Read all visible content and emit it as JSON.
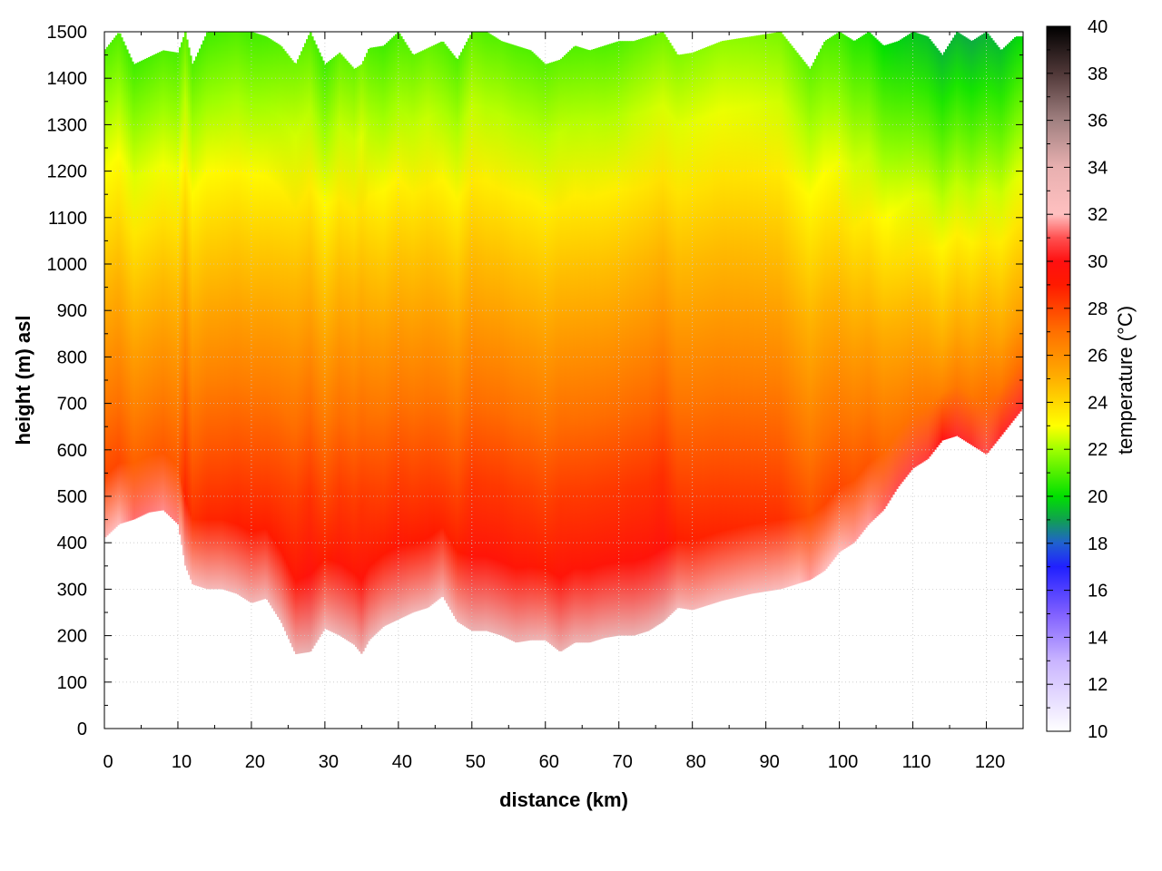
{
  "chart_data": {
    "type": "heatmap",
    "xlabel": "distance (km)",
    "ylabel": "height (m) asl",
    "colorbar_label": "temperature (°C)",
    "xlim": [
      0,
      125
    ],
    "ylim": [
      0,
      1500
    ],
    "clim": [
      10,
      40
    ],
    "x_ticks": [
      0,
      10,
      20,
      30,
      40,
      50,
      60,
      70,
      80,
      90,
      100,
      110,
      120
    ],
    "y_ticks": [
      0,
      100,
      200,
      300,
      400,
      500,
      600,
      700,
      800,
      900,
      1000,
      1100,
      1200,
      1300,
      1400,
      1500
    ],
    "c_ticks": [
      10,
      12,
      14,
      16,
      18,
      20,
      22,
      24,
      26,
      28,
      30,
      32,
      34,
      36,
      38,
      40
    ],
    "grid": true,
    "colormap": [
      {
        "t": 10,
        "color": "#ffffff"
      },
      {
        "t": 13,
        "color": "#c9b4ff"
      },
      {
        "t": 15,
        "color": "#8060ff"
      },
      {
        "t": 17,
        "color": "#2020ff"
      },
      {
        "t": 18,
        "color": "#2060d0"
      },
      {
        "t": 19,
        "color": "#10a050"
      },
      {
        "t": 20,
        "color": "#00e000"
      },
      {
        "t": 22,
        "color": "#a0ff00"
      },
      {
        "t": 23,
        "color": "#ffff00"
      },
      {
        "t": 25,
        "color": "#ffb000"
      },
      {
        "t": 27,
        "color": "#ff7000"
      },
      {
        "t": 29,
        "color": "#ff1a00"
      },
      {
        "t": 30,
        "color": "#ff1010"
      },
      {
        "t": 31,
        "color": "#ff5050"
      },
      {
        "t": 32,
        "color": "#ffc0c0"
      },
      {
        "t": 34,
        "color": "#e8b0b0"
      },
      {
        "t": 36,
        "color": "#a08080"
      },
      {
        "t": 38,
        "color": "#503838"
      },
      {
        "t": 40,
        "color": "#000000"
      }
    ],
    "profile_distance_km": [
      0,
      2,
      4,
      6,
      8,
      10,
      11,
      12,
      14,
      16,
      18,
      20,
      22,
      24,
      26,
      28,
      30,
      32,
      34,
      35,
      36,
      38,
      40,
      42,
      44,
      46,
      48,
      50,
      52,
      54,
      56,
      58,
      60,
      62,
      64,
      66,
      68,
      70,
      72,
      74,
      76,
      78,
      80,
      84,
      88,
      92,
      96,
      98,
      100,
      102,
      104,
      106,
      108,
      110,
      112,
      114,
      116,
      118,
      120,
      122,
      124,
      125
    ],
    "ground_height_m": [
      410,
      440,
      450,
      465,
      470,
      440,
      350,
      310,
      300,
      300,
      290,
      270,
      280,
      230,
      160,
      165,
      215,
      200,
      180,
      160,
      190,
      220,
      235,
      250,
      260,
      285,
      230,
      210,
      210,
      200,
      185,
      190,
      190,
      165,
      185,
      185,
      195,
      200,
      200,
      210,
      230,
      260,
      255,
      275,
      290,
      300,
      320,
      340,
      380,
      400,
      440,
      470,
      520,
      560,
      580,
      620,
      630,
      610,
      590,
      630,
      670,
      690
    ],
    "top_temperature_c": [
      21.0,
      21.0,
      20.8,
      20.9,
      21.0,
      20.9,
      21.2,
      21.0,
      20.8,
      20.9,
      21.0,
      20.8,
      20.9,
      21.1,
      21.4,
      21.0,
      20.8,
      21.2,
      21.3,
      21.5,
      21.0,
      20.8,
      20.9,
      21.2,
      21.3,
      21.0,
      21.0,
      21.2,
      21.0,
      21.1,
      21.0,
      21.0,
      21.1,
      21.2,
      21.0,
      21.1,
      21.0,
      21.0,
      21.2,
      21.3,
      21.4,
      21.6,
      21.7,
      21.8,
      21.7,
      21.5,
      21.2,
      21.0,
      20.8,
      20.5,
      20.3,
      20.0,
      19.8,
      19.6,
      19.5,
      19.4,
      19.3,
      19.2,
      19.3,
      19.5,
      19.8,
      20.0
    ],
    "lapse_rate_c_per_km": [
      7.5,
      7.5,
      7.6,
      7.6,
      7.6,
      7.4,
      7.6,
      7.6,
      7.6,
      7.5,
      7.5,
      7.6,
      7.6,
      7.4,
      7.2,
      7.5,
      7.6,
      7.5,
      7.4,
      7.3,
      7.5,
      7.6,
      7.6,
      7.5,
      7.4,
      7.5,
      7.5,
      7.4,
      7.5,
      7.5,
      7.5,
      7.5,
      7.4,
      7.5,
      7.5,
      7.5,
      7.6,
      7.6,
      7.5,
      7.4,
      7.5,
      7.0,
      6.8,
      6.6,
      6.6,
      6.7,
      6.8,
      7.0,
      7.3,
      7.6,
      7.9,
      8.2,
      8.5,
      8.8,
      9.0,
      9.2,
      9.4,
      9.5,
      9.6,
      9.5,
      9.4,
      9.3
    ],
    "surface_warming_c": 3.0,
    "surface_layer_m": 120,
    "top_edge_m": [
      1460,
      1500,
      1430,
      1445,
      1460,
      1455,
      1500,
      1430,
      1500,
      1500,
      1500,
      1500,
      1490,
      1470,
      1430,
      1500,
      1430,
      1455,
      1420,
      1430,
      1465,
      1470,
      1500,
      1450,
      1465,
      1480,
      1440,
      1500,
      1500,
      1480,
      1470,
      1460,
      1430,
      1440,
      1470,
      1460,
      1470,
      1480,
      1480,
      1490,
      1500,
      1450,
      1455,
      1480,
      1490,
      1500,
      1420,
      1480,
      1500,
      1480,
      1500,
      1470,
      1480,
      1500,
      1490,
      1450,
      1500,
      1480,
      1500,
      1460,
      1490,
      1490
    ]
  }
}
